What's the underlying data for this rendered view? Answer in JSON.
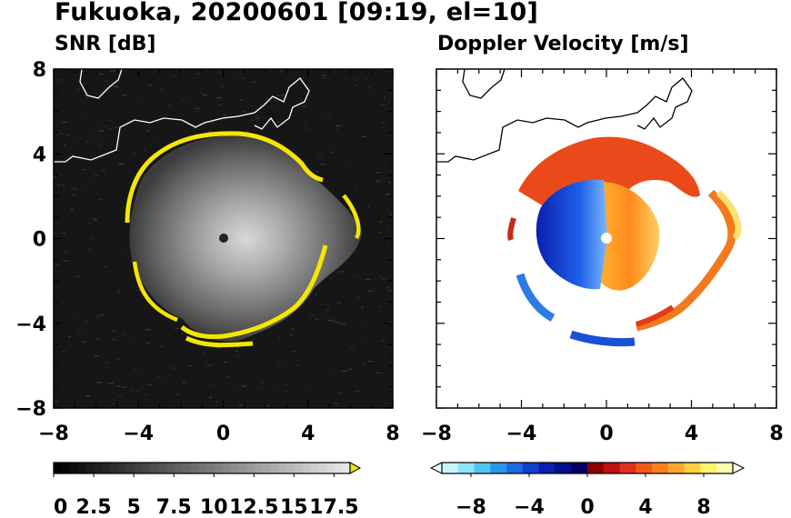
{
  "figure": {
    "title": "Fukuoka, 20200601 [09:19, el=10]"
  },
  "chart_data": [
    {
      "type": "heatmap",
      "title": "SNR [dB]",
      "xlim": [
        -8,
        8
      ],
      "ylim": [
        -8,
        8
      ],
      "xticks": [
        "−8",
        "−4",
        "0",
        "4",
        "8"
      ],
      "yticks": [
        "8",
        "4",
        "0",
        "−4",
        "−8"
      ],
      "xtick_values": [
        -8,
        -4,
        0,
        4,
        8
      ],
      "ytick_values": [
        8,
        4,
        0,
        -4,
        -8
      ],
      "radar_center": [
        0,
        0
      ],
      "echo_radius_approx": 4.4,
      "colorbar": {
        "ticks": [
          "0",
          "2.5",
          "5",
          "7.5",
          "10",
          "12.5",
          "15",
          "17.5"
        ],
        "tick_values": [
          0,
          2.5,
          5,
          7.5,
          10,
          12.5,
          15,
          17.5
        ],
        "range": [
          0,
          18.5
        ],
        "extend": "max",
        "colormap": "grayscale",
        "extend_color": "#f2e600"
      },
      "colors": {
        "background": "#161616",
        "ring": "#f5e600",
        "coastline": "#ffffff"
      }
    },
    {
      "type": "heatmap",
      "title": "Doppler Velocity [m/s]",
      "xlim": [
        -8,
        8
      ],
      "ylim": [
        -8,
        8
      ],
      "xticks": [
        "−8",
        "−4",
        "0",
        "4",
        "8"
      ],
      "yticks": [
        "8",
        "4",
        "0",
        "−4",
        "−8"
      ],
      "xtick_values": [
        -8,
        -4,
        0,
        4,
        8
      ],
      "ytick_values": [
        8,
        4,
        0,
        -4,
        -8
      ],
      "colorbar": {
        "ticks": [
          "−8",
          "−4",
          "0",
          "4",
          "8"
        ],
        "tick_values": [
          -8,
          -4,
          0,
          4,
          8
        ],
        "range": [
          -10,
          10
        ],
        "extend": "both",
        "colormap": "diverging blue-red"
      },
      "colors": {
        "negative": "#0a2cd6",
        "positive": "#e8451a",
        "coastline": "#000000"
      }
    }
  ]
}
